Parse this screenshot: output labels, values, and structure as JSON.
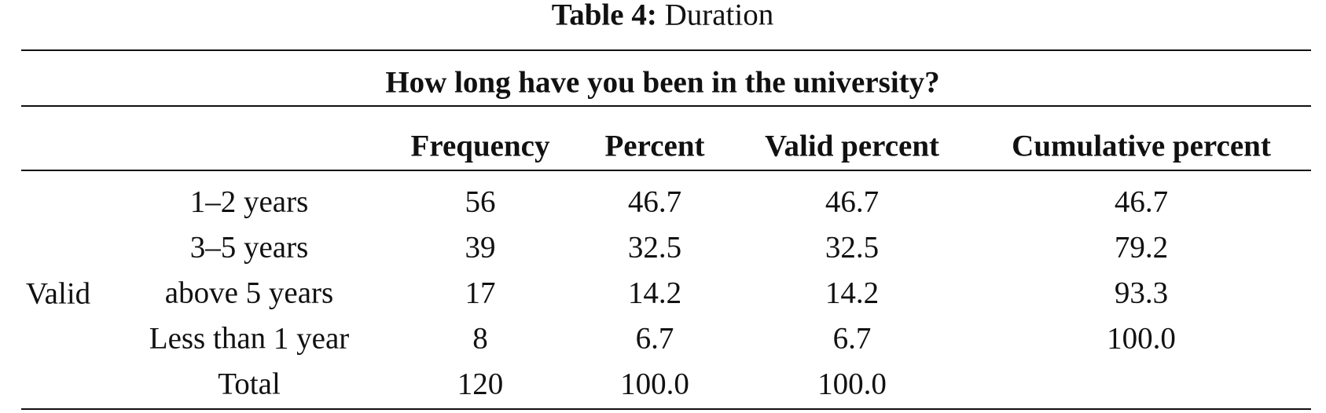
{
  "caption": {
    "label": "Table 4:",
    "text": "Duration"
  },
  "table": {
    "question": "How long have you been in the university?",
    "columns": [
      "Frequency",
      "Percent",
      "Valid percent",
      "Cumulative percent"
    ],
    "group": "Valid",
    "rows": [
      [
        "1–2 years",
        "56",
        "46.7",
        "46.7",
        "46.7"
      ],
      [
        "3–5 years",
        "39",
        "32.5",
        "32.5",
        "79.2"
      ],
      [
        "above 5 years",
        "17",
        "14.2",
        "14.2",
        "93.3"
      ],
      [
        "Less than 1 year",
        "8",
        "6.7",
        "6.7",
        "100.0"
      ],
      [
        "Total",
        "120",
        "100.0",
        "100.0"
      ]
    ]
  }
}
